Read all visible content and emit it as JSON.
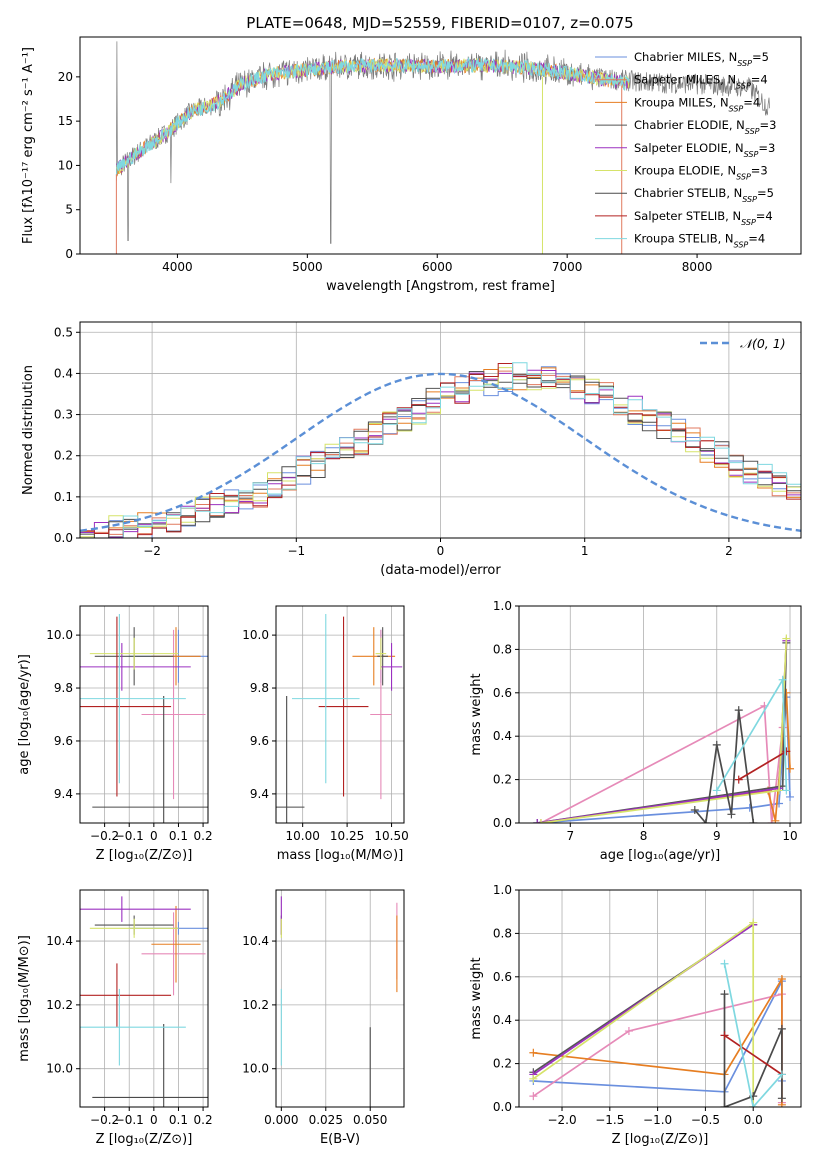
{
  "title": "PLATE=0648, MJD=52559, FIBERID=0107, z=0.075",
  "colors": {
    "chabrier_miles": "#6a8fde",
    "salpeter_miles": "#e07a5f",
    "kroupa_miles": "#e67e22",
    "chabrier_elodie": "#555555",
    "salpeter_elodie": "#9b30c0",
    "kroupa_elodie": "#d6e36a",
    "chabrier_stelib": "#4a4a4a",
    "salpeter_stelib": "#b22222",
    "kroupa_stelib": "#7fd8e0",
    "salpeter_miles_weight": "#e68ab8",
    "data_grey": "#7a7a7a",
    "normal": "#5b8fd6"
  },
  "chart_data": [
    {
      "id": "spectrum",
      "type": "line",
      "title": "PLATE=0648, MJD=52559, FIBERID=0107, z=0.075",
      "xlabel": "wavelength [Angstrom, rest frame]",
      "ylabel": "Flux [fλ10⁻¹⁷ erg cm⁻² s⁻¹ A⁻¹]",
      "xlim": [
        3250,
        8800
      ],
      "ylim": [
        0,
        24.5
      ],
      "xticks": [
        4000,
        5000,
        6000,
        7000,
        8000
      ],
      "yticks": [
        0,
        5,
        10,
        15,
        20
      ],
      "legend_position": "right",
      "legend": [
        "Chabrier MILES, N_SSP=5",
        "Salpeter MILES, N_SSP=4",
        "Kroupa MILES, N_SSP=4",
        "Chabrier ELODIE, N_SSP=3",
        "Salpeter ELODIE, N_SSP=3",
        "Kroupa ELODIE, N_SSP=3",
        "Chabrier STELIB, N_SSP=5",
        "Salpeter STELIB, N_SSP=4",
        "Kroupa STELIB, N_SSP=4"
      ],
      "model_continuum": {
        "x": [
          3530,
          3700,
          3900,
          4100,
          4300,
          4500,
          4700,
          5000,
          5300,
          5600,
          6000,
          6400,
          6800,
          7200,
          7500
        ],
        "y": [
          9.5,
          11.5,
          13.5,
          16,
          17,
          19.2,
          20.3,
          20.8,
          21.2,
          21.3,
          21.2,
          21.3,
          20.9,
          19.9,
          19.2
        ]
      },
      "data_continuum": {
        "x": [
          3530,
          3700,
          3900,
          4100,
          4300,
          4500,
          4700,
          5000,
          5300,
          5600,
          6000,
          6400,
          6800,
          7200,
          7600,
          8000,
          8400,
          8550
        ],
        "y": [
          9.5,
          11.5,
          13.5,
          16,
          17,
          19.2,
          20.3,
          20.8,
          21.2,
          21.3,
          21.2,
          21.3,
          20.9,
          19.9,
          19.4,
          19.2,
          18.8,
          16.5
        ]
      }
    },
    {
      "id": "residuals",
      "type": "line",
      "xlabel": "(data-model)/error",
      "ylabel": "Normed distribution",
      "xlim": [
        -2.5,
        2.5
      ],
      "ylim": [
        0,
        0.525
      ],
      "xticks": [
        -2,
        -1,
        0,
        1,
        2
      ],
      "yticks": [
        0.0,
        0.1,
        0.2,
        0.3,
        0.4,
        0.5
      ],
      "legend": [
        "𝒩(0, 1)"
      ],
      "legend_position": "top-right",
      "bin_width": 0.1,
      "bin_start": -2.5,
      "histogram_envelope": [
        0.01,
        0.015,
        0.02,
        0.025,
        0.03,
        0.04,
        0.045,
        0.055,
        0.065,
        0.075,
        0.085,
        0.1,
        0.11,
        0.13,
        0.145,
        0.165,
        0.18,
        0.2,
        0.215,
        0.235,
        0.255,
        0.275,
        0.295,
        0.31,
        0.33,
        0.345,
        0.36,
        0.37,
        0.38,
        0.39,
        0.395,
        0.395,
        0.39,
        0.38,
        0.37,
        0.36,
        0.345,
        0.33,
        0.31,
        0.295,
        0.275,
        0.255,
        0.235,
        0.215,
        0.2,
        0.18,
        0.165,
        0.145,
        0.13,
        0.11,
        0.1,
        0.085,
        0.075,
        0.065,
        0.055,
        0.045,
        0.04,
        0.03,
        0.025,
        0.02,
        0.015
      ]
    },
    {
      "id": "age-vs-Z",
      "type": "scatter",
      "xlabel": "Z [log₁₀(Z/Z⊙)]",
      "ylabel": "age  [log₁₀(age/yr)]",
      "xlim": [
        -0.3,
        0.22
      ],
      "ylim": [
        9.29,
        10.11
      ],
      "xticks": [
        -0.2,
        -0.1,
        0.0,
        0.1,
        0.2
      ],
      "yticks": [
        9.4,
        9.6,
        9.8,
        10.0
      ],
      "points": [
        {
          "series": "chabrier_miles",
          "x": 0.1,
          "y": 9.92,
          "xerr": [
            0.2,
            0.2
          ],
          "yerr": [
            0.1,
            0.1
          ]
        },
        {
          "series": "salpeter_miles_weight",
          "x": 0.08,
          "y": 9.7,
          "xerr": [
            0.13,
            0.13
          ],
          "yerr": [
            0.32,
            0.32
          ]
        },
        {
          "series": "kroupa_miles",
          "x": 0.09,
          "y": 9.92,
          "xerr": [
            0.1,
            0.1
          ],
          "yerr": [
            0.11,
            0.11
          ]
        },
        {
          "series": "chabrier_elodie",
          "x": -0.08,
          "y": 9.92,
          "xerr": [
            0.16,
            0.16
          ],
          "yerr": [
            0.11,
            0.11
          ]
        },
        {
          "series": "salpeter_elodie",
          "x": -0.13,
          "y": 9.88,
          "xerr": [
            0.28,
            0.28
          ],
          "yerr": [
            0.09,
            0.09
          ]
        },
        {
          "series": "kroupa_elodie",
          "x": -0.08,
          "y": 9.93,
          "xerr": [
            0.18,
            0.18
          ],
          "yerr": [
            0.06,
            0.06
          ]
        },
        {
          "series": "chabrier_stelib",
          "x": 0.04,
          "y": 9.35,
          "xerr": [
            0.29,
            0.29
          ],
          "yerr": [
            0.42,
            0.42
          ]
        },
        {
          "series": "salpeter_stelib",
          "x": -0.15,
          "y": 9.73,
          "xerr": [
            0.22,
            0.22
          ],
          "yerr": [
            0.34,
            0.34
          ]
        },
        {
          "series": "kroupa_stelib",
          "x": -0.14,
          "y": 9.76,
          "xerr": [
            0.27,
            0.27
          ],
          "yerr": [
            0.32,
            0.32
          ]
        }
      ]
    },
    {
      "id": "age-vs-mass",
      "type": "scatter",
      "xlabel": "mass [log₁₀(M/M⊙)]",
      "xlim": [
        9.85,
        10.57
      ],
      "ylim": [
        9.29,
        10.11
      ],
      "xticks": [
        10.0,
        10.25,
        10.5
      ],
      "yticks": [
        9.4,
        9.6,
        9.8,
        10.0
      ],
      "points": [
        {
          "series": "chabrier_miles",
          "x": 10.44,
          "y": 9.92,
          "xerr": [
            0.02,
            0.02
          ],
          "yerr": [
            0.1,
            0.1
          ]
        },
        {
          "series": "salpeter_miles_weight",
          "x": 10.44,
          "y": 9.7,
          "xerr": [
            0.06,
            0.06
          ],
          "yerr": [
            0.32,
            0.32
          ]
        },
        {
          "series": "kroupa_miles",
          "x": 10.4,
          "y": 9.92,
          "xerr": [
            0.12,
            0.12
          ],
          "yerr": [
            0.11,
            0.11
          ]
        },
        {
          "series": "chabrier_elodie",
          "x": 10.45,
          "y": 9.92,
          "xerr": [
            0.03,
            0.03
          ],
          "yerr": [
            0.11,
            0.11
          ]
        },
        {
          "series": "salpeter_elodie",
          "x": 10.5,
          "y": 9.88,
          "xerr": [
            0.06,
            0.06
          ],
          "yerr": [
            0.09,
            0.09
          ]
        },
        {
          "series": "kroupa_elodie",
          "x": 10.44,
          "y": 9.93,
          "xerr": [
            0.03,
            0.03
          ],
          "yerr": [
            0.06,
            0.06
          ]
        },
        {
          "series": "chabrier_stelib",
          "x": 9.91,
          "y": 9.35,
          "xerr": [
            0.1,
            0.1
          ],
          "yerr": [
            0.42,
            0.42
          ]
        },
        {
          "series": "salpeter_stelib",
          "x": 10.23,
          "y": 9.73,
          "xerr": [
            0.14,
            0.14
          ],
          "yerr": [
            0.34,
            0.34
          ]
        },
        {
          "series": "kroupa_stelib",
          "x": 10.13,
          "y": 9.76,
          "xerr": [
            0.19,
            0.19
          ],
          "yerr": [
            0.32,
            0.32
          ]
        }
      ]
    },
    {
      "id": "mass-weight-vs-age",
      "type": "line",
      "xlabel": "age  [log₁₀(age/yr)]",
      "ylabel": "mass weight",
      "xlim": [
        6.3,
        10.15
      ],
      "ylim": [
        0,
        1
      ],
      "xticks": [
        7,
        8,
        9,
        10
      ],
      "yticks": [
        0.0,
        0.2,
        0.4,
        0.6,
        0.8,
        1.0
      ],
      "series": [
        {
          "key": "chabrier_miles",
          "x": [
            6.55,
            9.45,
            9.85,
            9.95,
            10.0
          ],
          "y": [
            0.0,
            0.07,
            0.09,
            0.58,
            0.12
          ]
        },
        {
          "key": "salpeter_miles_weight",
          "x": [
            6.6,
            9.65,
            9.75,
            9.9
          ],
          "y": [
            0.0,
            0.54,
            0.0,
            0.44
          ]
        },
        {
          "key": "kroupa_miles",
          "x": [
            6.6,
            9.7,
            9.8,
            9.95,
            10.0
          ],
          "y": [
            0.0,
            0.15,
            0.01,
            0.6,
            0.25
          ]
        },
        {
          "key": "chabrier_elodie",
          "x": [
            6.55,
            9.9,
            9.95
          ],
          "y": [
            0.0,
            0.17,
            0.83
          ]
        },
        {
          "key": "salpeter_elodie",
          "x": [
            6.55,
            9.85,
            9.95
          ],
          "y": [
            0.0,
            0.16,
            0.84
          ]
        },
        {
          "key": "kroupa_elodie",
          "x": [
            6.6,
            9.85,
            9.95
          ],
          "y": [
            0.0,
            0.15,
            0.85
          ]
        },
        {
          "key": "chabrier_stelib",
          "x": [
            8.7,
            8.85,
            9.0,
            9.2,
            9.3,
            9.5
          ],
          "y": [
            0.06,
            0.0,
            0.36,
            0.04,
            0.52,
            0.0
          ]
        },
        {
          "key": "salpeter_stelib",
          "x": [
            9.3,
            9.95
          ],
          "y": [
            0.2,
            0.33
          ]
        },
        {
          "key": "kroupa_stelib",
          "x": [
            9.0,
            9.9,
            9.95
          ],
          "y": [
            0.15,
            0.66,
            0.15
          ]
        }
      ]
    },
    {
      "id": "mass-vs-Z",
      "type": "scatter",
      "xlabel": "Z [log₁₀(Z/Z⊙)]",
      "ylabel": "mass [log₁₀(M/M⊙)]",
      "xlim": [
        -0.3,
        0.22
      ],
      "ylim": [
        9.88,
        10.56
      ],
      "xticks": [
        -0.2,
        -0.1,
        0.0,
        0.1,
        0.2
      ],
      "yticks": [
        10.0,
        10.2,
        10.4
      ],
      "points": [
        {
          "series": "chabrier_miles",
          "x": 0.1,
          "y": 10.44,
          "xerr": [
            0.2,
            0.2
          ],
          "yerr": [
            0.02,
            0.02
          ]
        },
        {
          "series": "salpeter_miles_weight",
          "x": 0.08,
          "y": 10.36,
          "xerr": [
            0.13,
            0.13
          ],
          "yerr": [
            0.13,
            0.13
          ]
        },
        {
          "series": "kroupa_miles",
          "x": 0.09,
          "y": 10.39,
          "xerr": [
            0.1,
            0.1
          ],
          "yerr": [
            0.12,
            0.12
          ]
        },
        {
          "series": "chabrier_elodie",
          "x": -0.08,
          "y": 10.45,
          "xerr": [
            0.16,
            0.16
          ],
          "yerr": [
            0.03,
            0.03
          ]
        },
        {
          "series": "salpeter_elodie",
          "x": -0.13,
          "y": 10.5,
          "xerr": [
            0.28,
            0.28
          ],
          "yerr": [
            0.04,
            0.04
          ]
        },
        {
          "series": "kroupa_elodie",
          "x": -0.08,
          "y": 10.44,
          "xerr": [
            0.18,
            0.18
          ],
          "yerr": [
            0.03,
            0.03
          ]
        },
        {
          "series": "chabrier_stelib",
          "x": 0.04,
          "y": 9.91,
          "xerr": [
            0.29,
            0.29
          ],
          "yerr": [
            0.23,
            0.23
          ]
        },
        {
          "series": "salpeter_stelib",
          "x": -0.15,
          "y": 10.23,
          "xerr": [
            0.22,
            0.22
          ],
          "yerr": [
            0.1,
            0.1
          ]
        },
        {
          "series": "kroupa_stelib",
          "x": -0.14,
          "y": 10.13,
          "xerr": [
            0.27,
            0.27
          ],
          "yerr": [
            0.12,
            0.12
          ]
        }
      ]
    },
    {
      "id": "mass-vs-EBV",
      "type": "scatter",
      "xlabel": "E(B-V)",
      "xlim": [
        -0.003,
        0.069
      ],
      "ylim": [
        9.88,
        10.56
      ],
      "xticks": [
        0.0,
        0.025,
        0.05
      ],
      "yticks": [
        10.0,
        10.2,
        10.4
      ],
      "points": [
        {
          "series": "chabrier_elodie",
          "x": 0.0,
          "y": 10.45,
          "yerr": [
            0.03,
            0.03
          ]
        },
        {
          "series": "salpeter_elodie",
          "x": 0.0,
          "y": 10.48,
          "yerr": [
            0.06,
            0.06
          ]
        },
        {
          "series": "kroupa_elodie",
          "x": 0.0,
          "y": 10.44,
          "yerr": [
            0.03,
            0.03
          ]
        },
        {
          "series": "kroupa_stelib",
          "x": 0.0,
          "y": 10.13,
          "yerr": [
            0.12,
            0.12
          ]
        },
        {
          "series": "chabrier_stelib",
          "x": 0.05,
          "y": 10.0,
          "yerr": [
            0.13,
            0.13
          ]
        },
        {
          "series": "salpeter_miles_weight",
          "x": 0.065,
          "y": 10.4,
          "yerr": [
            0.12,
            0.12
          ]
        },
        {
          "series": "kroupa_miles",
          "x": 0.065,
          "y": 10.36,
          "yerr": [
            0.12,
            0.12
          ]
        }
      ]
    },
    {
      "id": "mass-weight-vs-Z",
      "type": "line",
      "xlabel": "Z [log₁₀(Z/Z⊙)]",
      "ylabel": "mass weight",
      "xlim": [
        -2.45,
        0.5
      ],
      "ylim": [
        0,
        1
      ],
      "xticks": [
        -2.0,
        -1.5,
        -1.0,
        -0.5,
        0.0
      ],
      "yticks": [
        0.0,
        0.2,
        0.4,
        0.6,
        0.8,
        1.0
      ],
      "series": [
        {
          "key": "chabrier_miles",
          "x": [
            -2.3,
            -0.3,
            0.3,
            0.3
          ],
          "y": [
            0.12,
            0.07,
            0.58,
            0.12
          ]
        },
        {
          "key": "salpeter_miles_weight",
          "x": [
            -2.3,
            -1.3,
            0.3,
            0.3
          ],
          "y": [
            0.05,
            0.35,
            0.52,
            0.02
          ]
        },
        {
          "key": "kroupa_miles",
          "x": [
            -2.3,
            -0.3,
            0.3,
            0.3
          ],
          "y": [
            0.25,
            0.15,
            0.59,
            0.01
          ]
        },
        {
          "key": "chabrier_elodie",
          "x": [
            -2.3,
            0.0
          ],
          "y": [
            0.16,
            0.84
          ]
        },
        {
          "key": "salpeter_elodie",
          "x": [
            -2.3,
            0.0
          ],
          "y": [
            0.15,
            0.84
          ]
        },
        {
          "key": "kroupa_elodie",
          "x": [
            -2.3,
            0.0,
            0.0
          ],
          "y": [
            0.13,
            0.85,
            0.0
          ]
        },
        {
          "key": "chabrier_stelib",
          "x": [
            -0.3,
            -0.3,
            0.0,
            0.3,
            0.3
          ],
          "y": [
            0.52,
            0.0,
            0.05,
            0.36,
            0.04
          ]
        },
        {
          "key": "salpeter_stelib",
          "x": [
            -0.3,
            0.3
          ],
          "y": [
            0.33,
            0.15
          ]
        },
        {
          "key": "kroupa_stelib",
          "x": [
            -0.3,
            0.0,
            0.3
          ],
          "y": [
            0.66,
            0.0,
            0.15
          ]
        }
      ]
    }
  ]
}
